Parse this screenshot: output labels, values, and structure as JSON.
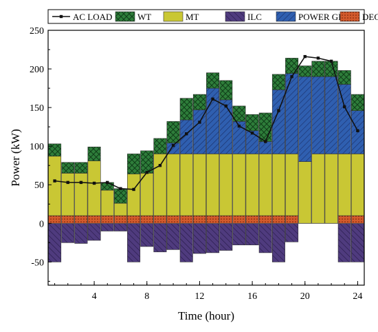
{
  "chart_data": {
    "type": "bar",
    "xlabel": "Time (hour)",
    "ylabel": "Power (kW)",
    "xlim": [
      0.5,
      24.5
    ],
    "ylim": [
      -80,
      250
    ],
    "xticks": [
      4,
      8,
      12,
      16,
      20,
      24
    ],
    "yticks": [
      -50,
      0,
      50,
      100,
      150,
      200,
      250
    ],
    "grid": false,
    "legend_position": "top",
    "legend": [
      "AC LOAD",
      "WT",
      "MT",
      "ILC",
      "POWER GRID",
      "DEG"
    ],
    "hours": [
      1,
      2,
      3,
      4,
      5,
      6,
      7,
      8,
      9,
      10,
      11,
      12,
      13,
      14,
      15,
      16,
      17,
      18,
      19,
      20,
      21,
      22,
      23,
      24
    ],
    "series": [
      {
        "name": "DEG",
        "style": "dotted",
        "color": "#d35a2c",
        "values": [
          10,
          10,
          10,
          10,
          10,
          10,
          10,
          10,
          10,
          10,
          10,
          10,
          10,
          10,
          10,
          10,
          10,
          10,
          10,
          0,
          0,
          0,
          10,
          10
        ]
      },
      {
        "name": "MT",
        "style": "solid",
        "color": "#c9c734",
        "values": [
          77,
          55,
          55,
          71,
          33,
          16,
          54,
          55,
          80,
          80,
          80,
          80,
          80,
          80,
          80,
          80,
          80,
          80,
          80,
          80,
          90,
          90,
          80,
          80
        ]
      },
      {
        "name": "POWER GRID",
        "style": "hatch",
        "color": "#2f5fb0",
        "values": [
          0,
          0,
          0,
          0,
          0,
          0,
          0,
          0,
          0,
          14,
          44,
          57,
          85,
          70,
          42,
          30,
          16,
          83,
          104,
          110,
          100,
          100,
          90,
          56
        ]
      },
      {
        "name": "WT",
        "style": "cross",
        "color": "#2e7d3a",
        "values": [
          16,
          14,
          14,
          18,
          10,
          19,
          26,
          29,
          20,
          28,
          28,
          20,
          20,
          25,
          20,
          21,
          37,
          20,
          20,
          14,
          20,
          20,
          18,
          21
        ]
      },
      {
        "name": "ILC",
        "style": "hatch",
        "color": "#4f3b7e",
        "values": [
          -50,
          -25,
          -26,
          -22,
          -10,
          -10,
          -50,
          -30,
          -37,
          -34,
          -50,
          -39,
          -38,
          -35,
          -28,
          -28,
          -38,
          -50,
          -24,
          0,
          0,
          0,
          -50,
          -50
        ]
      }
    ],
    "ac_load": [
      55,
      53,
      53,
      52,
      53,
      45,
      44,
      66,
      75,
      101,
      116,
      131,
      161,
      152,
      126,
      117,
      106,
      146,
      190,
      216,
      214,
      210,
      151,
      120
    ]
  }
}
